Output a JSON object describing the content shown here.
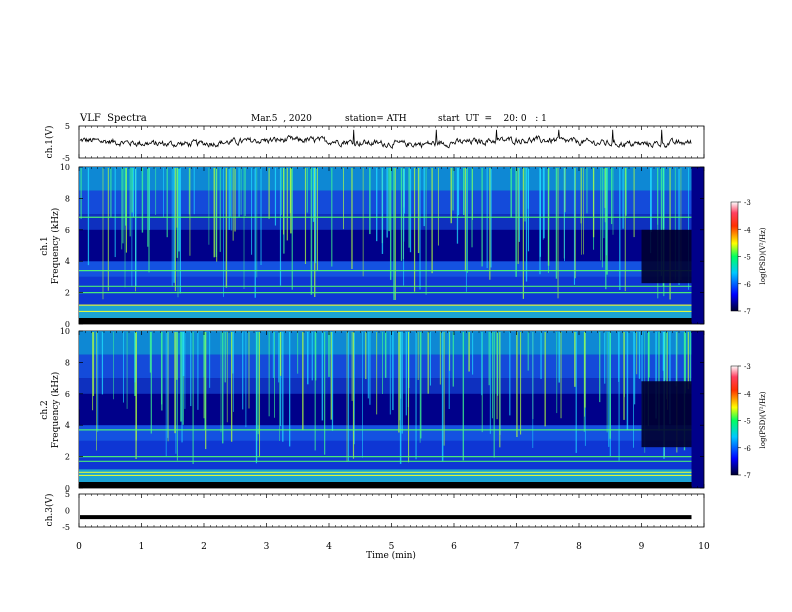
{
  "header": {
    "title": "VLF  Spectra",
    "date": "Mar.5  , 2020",
    "station": "station= ATH",
    "start": "start  UT  =    20: 0   : 1"
  },
  "colors": {
    "trace": "#000000",
    "ch3_trace": "#000000",
    "colormap": [
      "#000040",
      "#0000ff",
      "#00d0ff",
      "#00ff80",
      "#ffff00",
      "#ff8000",
      "#ff0000",
      "#ffffff"
    ]
  },
  "chart_data": [
    {
      "type": "line",
      "panel": "ch1-trace",
      "ylabel": "ch.1(V)",
      "ylim": [
        -5,
        5
      ],
      "yticks": [
        5,
        -5
      ],
      "description_values": {
        "mean": 0,
        "amplitude_range": [
          -1.5,
          1.5
        ]
      },
      "x_range": [
        0,
        9.8
      ]
    },
    {
      "type": "heatmap",
      "panel": "ch1-spectrogram",
      "ylabel_top": "ch.1",
      "ylabel": "Frequency  (kHz)",
      "ylim": [
        0,
        10
      ],
      "yticks": [
        0,
        2,
        4,
        6,
        8,
        10
      ],
      "x_range": [
        0,
        9.8
      ],
      "colorbar": {
        "label": "log(PSD)(V²/Hz)",
        "ticks": [
          -3,
          -4,
          -5,
          -6,
          -7
        ],
        "range": [
          -7,
          -3
        ]
      },
      "features": {
        "quiet_band_kHz": [
          4,
          6
        ],
        "narrowband_lines_kHz": [
          0.3,
          0.8,
          1.2,
          2.0,
          2.4,
          3.4,
          6.8
        ],
        "dark_region_after_min": 9.0
      }
    },
    {
      "type": "heatmap",
      "panel": "ch2-spectrogram",
      "ylabel_top": "ch.2",
      "ylabel": "Frequency  (kHz)",
      "ylim": [
        0,
        10
      ],
      "yticks": [
        0,
        2,
        4,
        6,
        8,
        10
      ],
      "x_range": [
        0,
        9.8
      ],
      "colorbar": {
        "label": "log(PSD)(V²/Hz)",
        "ticks": [
          -3,
          -4,
          -5,
          -6,
          -7
        ],
        "range": [
          -7,
          -3
        ]
      },
      "features": {
        "quiet_band_kHz": [
          5,
          6.8
        ],
        "narrowband_lines_kHz": [
          0.8,
          1.0,
          1.7,
          2.0,
          3.7
        ],
        "dark_region_after_min": 9.0
      }
    },
    {
      "type": "line",
      "panel": "ch3-trace",
      "ylabel": "ch.3(V)",
      "ylim": [
        -5,
        5
      ],
      "yticks": [
        5,
        0,
        -5
      ],
      "description_values": {
        "constant_value": -2
      },
      "x_range": [
        0,
        9.8
      ]
    }
  ],
  "xaxis": {
    "label": "Time  (min)",
    "ticks": [
      0,
      1,
      2,
      3,
      4,
      5,
      6,
      7,
      8,
      9,
      10
    ],
    "range": [
      0,
      10
    ]
  }
}
